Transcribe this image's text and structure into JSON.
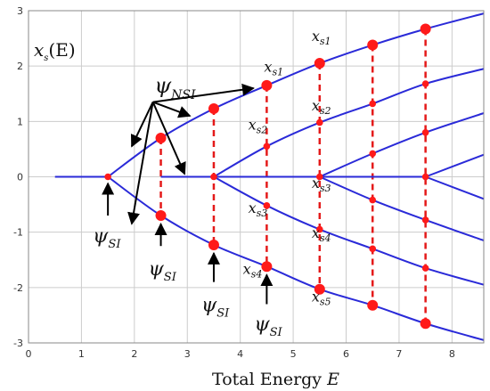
{
  "colors": {
    "curve": "#2a2ad8",
    "marker": "#ff1a1a",
    "dashed": "#e41a1a",
    "arrow": "#000000",
    "grid": "#cccccc"
  },
  "chart_data": {
    "type": "line",
    "title": "",
    "xlabel": "Total Energy E",
    "xlabel_text": "Total Energy ",
    "xlabel_var": "E",
    "ylabel": "x_s(E)",
    "ylabel_main": "x",
    "ylabel_sub": "s",
    "ylabel_arg": "(E)",
    "xlim": [
      0,
      8.6
    ],
    "ylim": [
      -3,
      3
    ],
    "xticks": [
      0,
      1,
      2,
      3,
      4,
      5,
      6,
      7,
      8
    ],
    "yticks": [
      -3,
      -2,
      -1,
      0,
      1,
      2,
      3
    ],
    "grid": true,
    "series": [
      {
        "x": [
          0.5,
          1.0,
          1.5
        ],
        "y": [
          0,
          0,
          0
        ]
      },
      {
        "x": [
          1.5,
          2.5,
          3.5,
          4.5,
          5.5,
          6.5,
          7.5,
          8.6
        ],
        "y": [
          0,
          0.7,
          1.23,
          1.65,
          2.05,
          2.38,
          2.67,
          2.95
        ]
      },
      {
        "x": [
          1.5,
          2.5,
          3.5,
          4.5,
          5.5,
          6.5,
          7.5,
          8.6
        ],
        "y": [
          0,
          -0.7,
          -1.23,
          -1.62,
          -2.03,
          -2.32,
          -2.65,
          -2.95
        ]
      },
      {
        "x": [
          2.5,
          3.5,
          5.5
        ],
        "y": [
          0,
          0,
          0
        ]
      },
      {
        "x": [
          3.5,
          4.5,
          5.5,
          6.5,
          7.5,
          8.6
        ],
        "y": [
          0,
          0.55,
          0.98,
          1.32,
          1.68,
          1.95
        ]
      },
      {
        "x": [
          3.5,
          4.5,
          5.5,
          6.5,
          7.5,
          8.6
        ],
        "y": [
          0,
          -0.52,
          -0.95,
          -1.3,
          -1.65,
          -1.95
        ]
      },
      {
        "x": [
          5.5,
          6.5,
          7.5,
          8.6
        ],
        "y": [
          0,
          0.42,
          0.8,
          1.15
        ]
      },
      {
        "x": [
          5.5,
          6.5,
          7.5,
          8.6
        ],
        "y": [
          0,
          -0.42,
          -0.78,
          -1.15
        ]
      },
      {
        "x": [
          5.5,
          6.5,
          7.5
        ],
        "y": [
          0,
          0,
          0
        ]
      },
      {
        "x": [
          7.5,
          8.6
        ],
        "y": [
          0,
          0.4
        ]
      },
      {
        "x": [
          7.5,
          8.6
        ],
        "y": [
          0,
          -0.4
        ]
      }
    ],
    "dashed_lines": [
      {
        "x": 2.5,
        "y": [
          0.7,
          -0.7
        ]
      },
      {
        "x": 3.5,
        "y": [
          1.23,
          -1.23
        ]
      },
      {
        "x": 4.5,
        "y": [
          1.65,
          -1.62
        ]
      },
      {
        "x": 5.5,
        "y": [
          2.05,
          -2.03
        ]
      },
      {
        "x": 6.5,
        "y": [
          2.38,
          -2.32
        ]
      },
      {
        "x": 7.5,
        "y": [
          2.67,
          -2.65
        ]
      }
    ],
    "large_markers": [
      {
        "x": 2.5,
        "y": 0.7
      },
      {
        "x": 2.5,
        "y": -0.7
      },
      {
        "x": 3.5,
        "y": 1.23
      },
      {
        "x": 3.5,
        "y": -1.23
      },
      {
        "x": 4.5,
        "y": 1.65
      },
      {
        "x": 4.5,
        "y": -1.62
      },
      {
        "x": 5.5,
        "y": 2.05
      },
      {
        "x": 5.5,
        "y": -2.03
      },
      {
        "x": 6.5,
        "y": 2.38
      },
      {
        "x": 6.5,
        "y": -2.32
      },
      {
        "x": 7.5,
        "y": 2.67
      },
      {
        "x": 7.5,
        "y": -2.65
      }
    ],
    "small_markers": [
      {
        "x": 1.5,
        "y": 0
      },
      {
        "x": 3.5,
        "y": 0
      },
      {
        "x": 4.5,
        "y": 0.55
      },
      {
        "x": 4.5,
        "y": -0.52
      },
      {
        "x": 5.5,
        "y": 0.98
      },
      {
        "x": 5.5,
        "y": 0
      },
      {
        "x": 5.5,
        "y": -0.95
      },
      {
        "x": 6.5,
        "y": 1.32
      },
      {
        "x": 6.5,
        "y": 0.42
      },
      {
        "x": 6.5,
        "y": -0.42
      },
      {
        "x": 6.5,
        "y": -1.3
      },
      {
        "x": 7.5,
        "y": 1.68
      },
      {
        "x": 7.5,
        "y": 0.8
      },
      {
        "x": 7.5,
        "y": 0
      },
      {
        "x": 7.5,
        "y": -0.78
      },
      {
        "x": 7.5,
        "y": -1.65
      }
    ],
    "branch_labels": [
      {
        "main": "x",
        "sub": "s1",
        "x": 4.45,
        "y": 1.9
      },
      {
        "main": "x",
        "sub": "s2",
        "x": 4.15,
        "y": 0.85
      },
      {
        "main": "x",
        "sub": "s3",
        "x": 4.15,
        "y": -0.65
      },
      {
        "main": "x",
        "sub": "s4",
        "x": 4.05,
        "y": -1.75
      },
      {
        "main": "x",
        "sub": "s1",
        "x": 5.35,
        "y": 2.45
      },
      {
        "main": "x",
        "sub": "s2",
        "x": 5.35,
        "y": 1.2
      },
      {
        "main": "x",
        "sub": "s3",
        "x": 5.35,
        "y": -0.2
      },
      {
        "main": "x",
        "sub": "s4",
        "x": 5.35,
        "y": -1.1
      },
      {
        "main": "x",
        "sub": "s5",
        "x": 5.35,
        "y": -2.25
      }
    ],
    "psi_nsi": {
      "main": "ψ",
      "sub": "NSI",
      "x": 2.85,
      "y": 1.65,
      "arrow_origin": {
        "x": 2.35,
        "y": 1.35
      },
      "arrow_targets": [
        {
          "x": 4.25,
          "y": 1.6
        },
        {
          "x": 3.05,
          "y": 1.1
        },
        {
          "x": 1.95,
          "y": 0.55
        },
        {
          "x": 1.95,
          "y": -0.85
        },
        {
          "x": 2.95,
          "y": 0.05
        }
      ]
    },
    "psi_si": [
      {
        "main": "ψ",
        "sub": "SI",
        "x": 1.45,
        "y": -1.05,
        "arrow_from": {
          "x": 1.5,
          "y": -0.7
        },
        "arrow_to": {
          "x": 1.5,
          "y": -0.12
        }
      },
      {
        "main": "ψ",
        "sub": "SI",
        "x": 2.5,
        "y": -1.65,
        "arrow_from": {
          "x": 2.5,
          "y": -1.25
        },
        "arrow_to": {
          "x": 2.5,
          "y": -0.85
        }
      },
      {
        "main": "ψ",
        "sub": "SI",
        "x": 3.5,
        "y": -2.3,
        "arrow_from": {
          "x": 3.5,
          "y": -1.9
        },
        "arrow_to": {
          "x": 3.5,
          "y": -1.38
        }
      },
      {
        "main": "ψ",
        "sub": "SI",
        "x": 4.5,
        "y": -2.65,
        "arrow_from": {
          "x": 4.5,
          "y": -2.3
        },
        "arrow_to": {
          "x": 4.5,
          "y": -1.77
        }
      }
    ]
  }
}
